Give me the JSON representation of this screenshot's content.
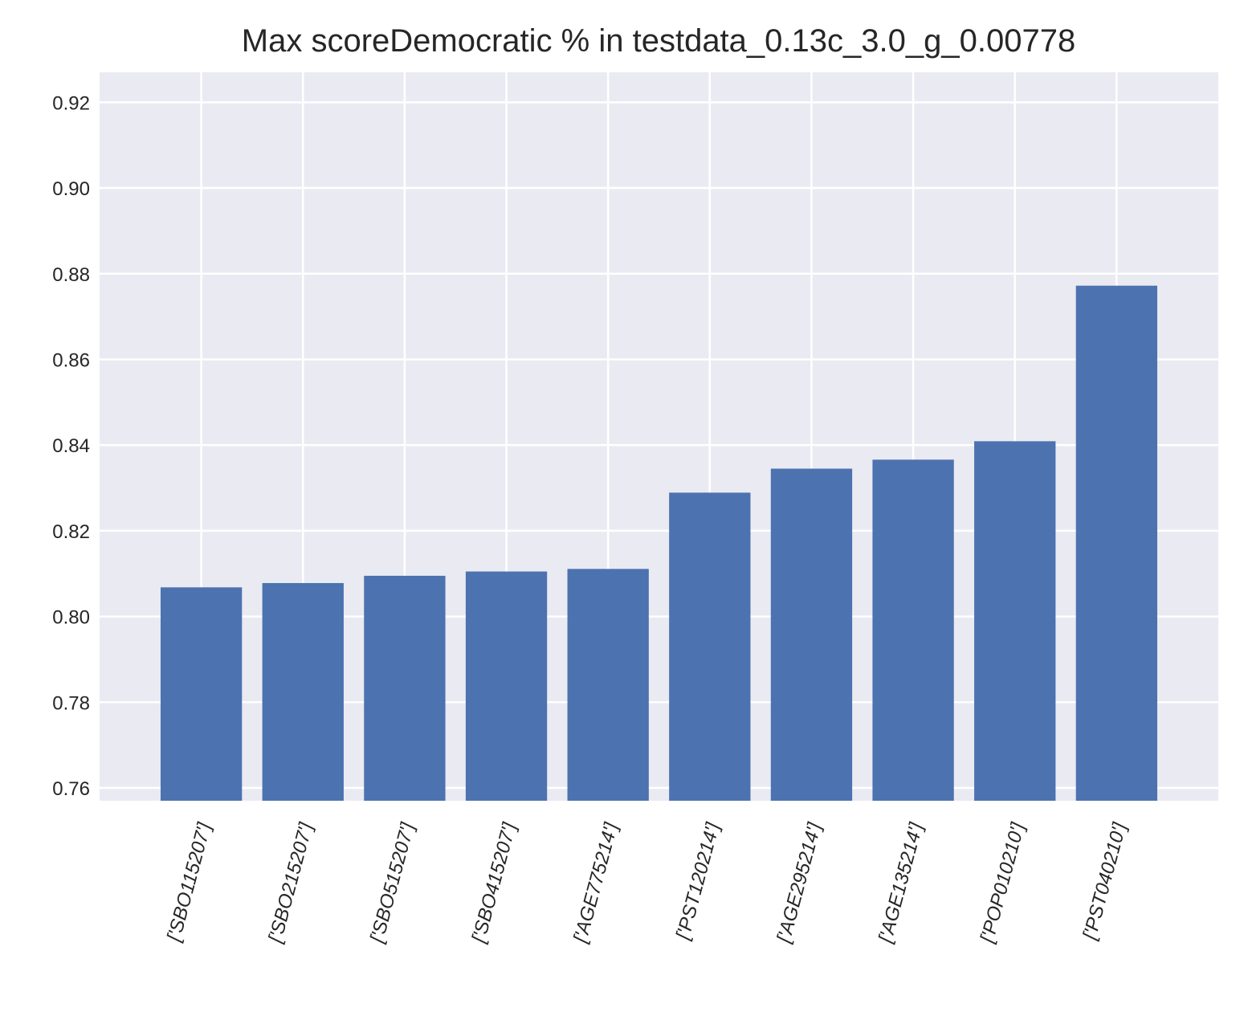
{
  "chart_data": {
    "type": "bar",
    "title": "Max scoreDemocratic % in testdata_0.13c_3.0_g_0.00778",
    "xlabel": "",
    "ylabel": "",
    "categories": [
      "['SBO115207']",
      "['SBO215207']",
      "['SBO515207']",
      "['SBO415207']",
      "['AGE775214']",
      "['PST120214']",
      "['AGE295214']",
      "['AGE135214']",
      "['POP010210']",
      "['PST040210']"
    ],
    "values": [
      0.8068,
      0.8078,
      0.8095,
      0.8105,
      0.8111,
      0.8289,
      0.8345,
      0.8366,
      0.8409,
      0.8772
    ],
    "ylim": [
      0.757,
      0.927
    ],
    "yticks": [
      "0.76",
      "0.78",
      "0.80",
      "0.82",
      "0.84",
      "0.86",
      "0.88",
      "0.90",
      "0.92"
    ],
    "x_tick_rotation_deg": 75,
    "grid": true,
    "colors": {
      "bar": "#4c72b0",
      "background": "#eaeaf2",
      "grid": "#ffffff",
      "text": "#262626"
    }
  }
}
